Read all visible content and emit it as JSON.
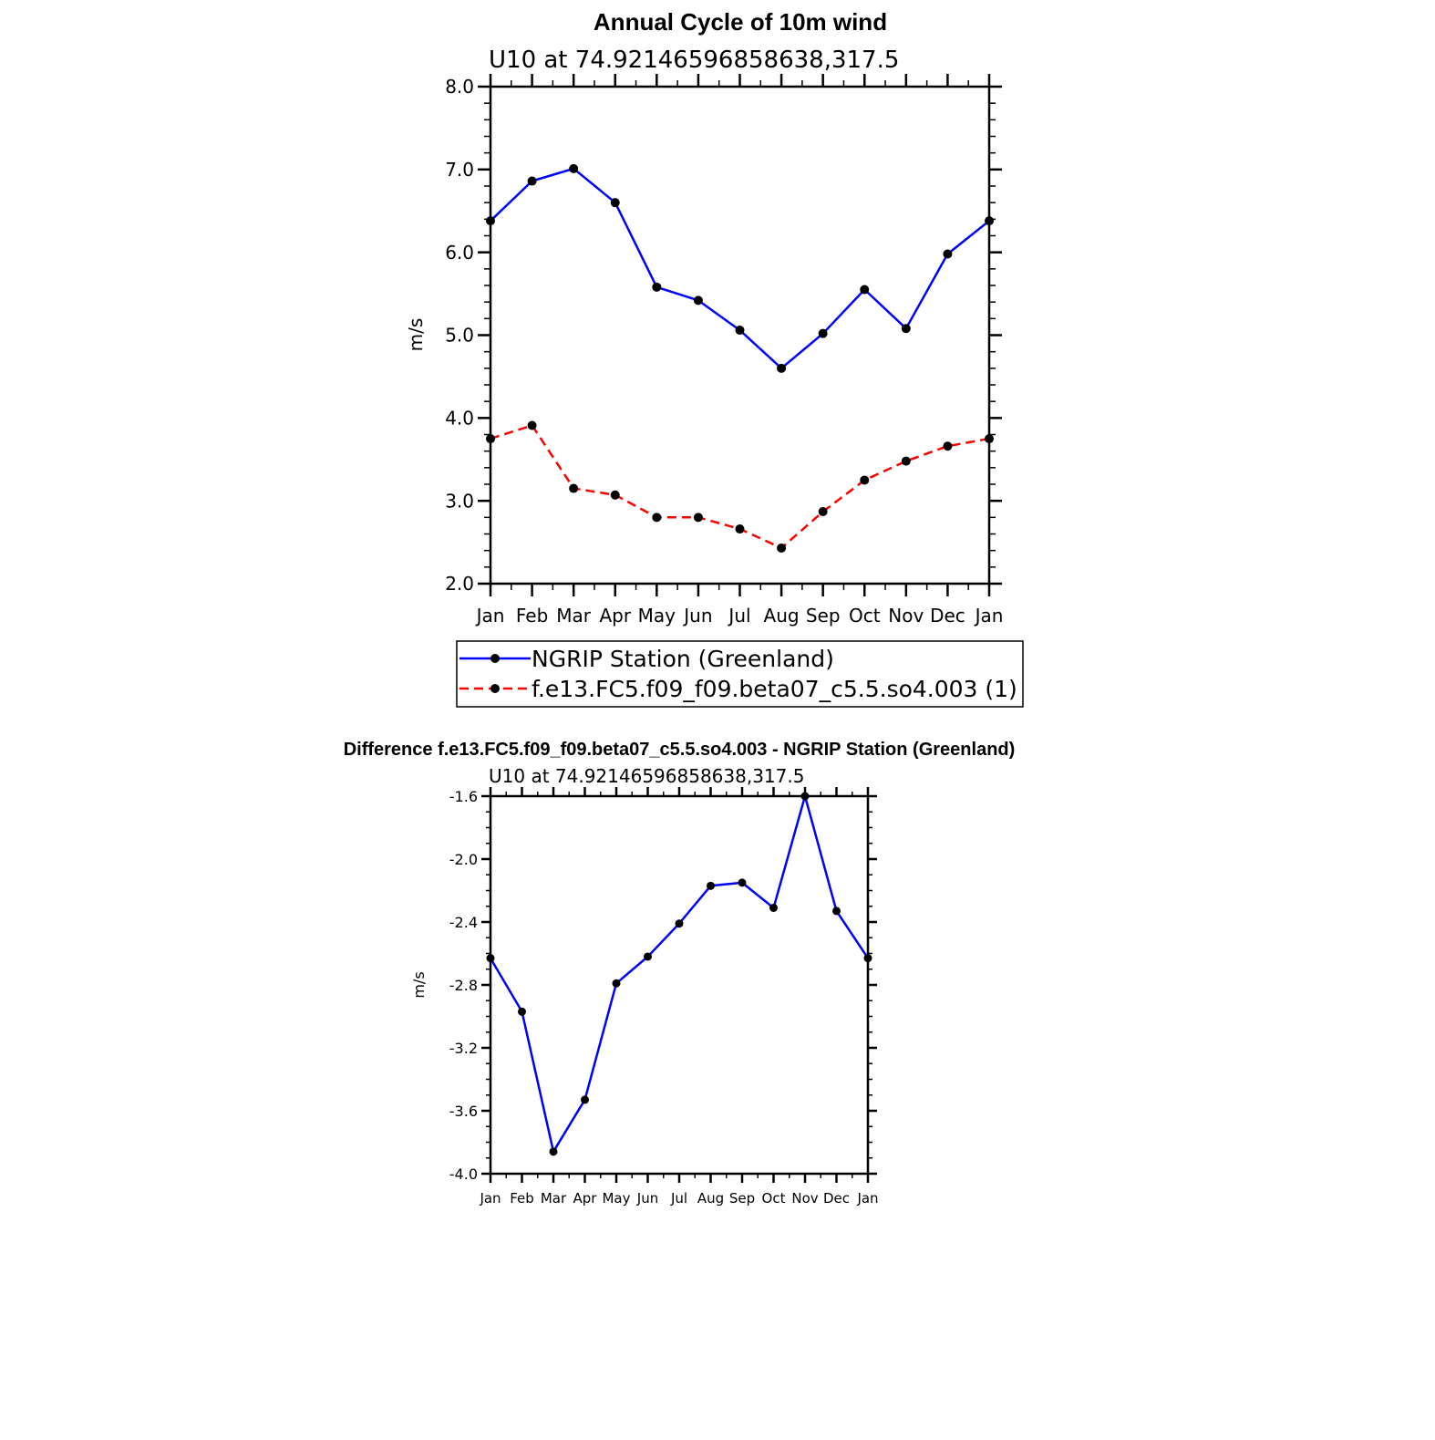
{
  "chart_data": [
    {
      "type": "line",
      "title": "Annual Cycle of 10m wind",
      "subtitle": "U10 at 74.92146596858638,317.5",
      "ylabel": "m/s",
      "xlabel": "",
      "ylim": [
        2.0,
        8.0
      ],
      "y_ticks": [
        "2.0",
        "3.0",
        "4.0",
        "5.0",
        "6.0",
        "7.0",
        "8.0"
      ],
      "categories": [
        "Jan",
        "Feb",
        "Mar",
        "Apr",
        "May",
        "Jun",
        "Jul",
        "Aug",
        "Sep",
        "Oct",
        "Nov",
        "Dec",
        "Jan"
      ],
      "series": [
        {
          "name": "NGRIP Station (Greenland)",
          "color": "#0000ff",
          "dash": "solid",
          "values": [
            6.38,
            6.86,
            7.01,
            6.6,
            5.58,
            5.42,
            5.06,
            4.6,
            5.02,
            5.55,
            5.08,
            5.98,
            6.38
          ]
        },
        {
          "name": "f.e13.FC5.f09_f09.beta07_c5.5.so4.003 (1)",
          "color": "#ff0000",
          "dash": "dashed",
          "values": [
            3.75,
            3.91,
            3.15,
            3.07,
            2.8,
            2.8,
            2.66,
            2.43,
            2.87,
            3.25,
            3.48,
            3.66,
            3.75
          ]
        }
      ],
      "legend": "bottom"
    },
    {
      "type": "line",
      "title": "Difference f.e13.FC5.f09_f09.beta07_c5.5.so4.003 - NGRIP Station (Greenland)",
      "subtitle": "U10 at 74.92146596858638,317.5",
      "ylabel": "m/s",
      "xlabel": "",
      "ylim": [
        -4.0,
        -1.6
      ],
      "y_ticks": [
        "-4.0",
        "-3.6",
        "-3.2",
        "-2.8",
        "-2.4",
        "-2.0",
        "-1.6"
      ],
      "categories": [
        "Jan",
        "Feb",
        "Mar",
        "Apr",
        "May",
        "Jun",
        "Jul",
        "Aug",
        "Sep",
        "Oct",
        "Nov",
        "Dec",
        "Jan"
      ],
      "series": [
        {
          "name": "Difference",
          "color": "#0000ff",
          "dash": "solid",
          "values": [
            -2.63,
            -2.97,
            -3.86,
            -3.53,
            -2.79,
            -2.62,
            -2.41,
            -2.17,
            -2.15,
            -2.31,
            -1.6,
            -2.33,
            -2.63
          ]
        }
      ]
    }
  ]
}
